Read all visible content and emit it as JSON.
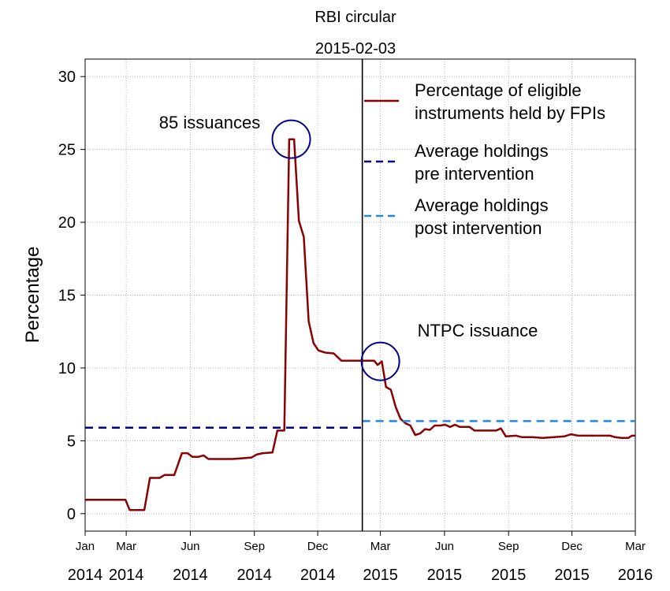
{
  "chart_data": {
    "type": "line",
    "title": "RBI circular",
    "subtitle": "2015-02-03",
    "ylabel": "Percentage",
    "xlabel": "",
    "ylim": [
      -1.2,
      31.2
    ],
    "yticks": [
      0,
      5,
      10,
      15,
      20,
      25,
      30
    ],
    "xlim": [
      "2014-01-01",
      "2016-03-01"
    ],
    "xticks": [
      {
        "date": "2014-01-01",
        "month": "Jan",
        "year": "2014"
      },
      {
        "date": "2014-03-01",
        "month": "Mar",
        "year": "2014"
      },
      {
        "date": "2014-06-01",
        "month": "Jun",
        "year": "2014"
      },
      {
        "date": "2014-09-01",
        "month": "Sep",
        "year": "2014"
      },
      {
        "date": "2014-12-01",
        "month": "Dec",
        "year": "2014"
      },
      {
        "date": "2015-03-01",
        "month": "Mar",
        "year": "2015"
      },
      {
        "date": "2015-06-01",
        "month": "Jun",
        "year": "2015"
      },
      {
        "date": "2015-09-01",
        "month": "Sep",
        "year": "2015"
      },
      {
        "date": "2015-12-01",
        "month": "Dec",
        "year": "2015"
      },
      {
        "date": "2016-03-01",
        "month": "Mar",
        "year": "2016"
      }
    ],
    "grid": true,
    "legend_position": "top-right",
    "intervention_date": "2015-02-03",
    "series": [
      {
        "name": "Percentage of eligible instruments held by FPIs",
        "color": "#8b0000",
        "style": "solid",
        "points": [
          [
            "2014-01-01",
            0.95
          ],
          [
            "2014-02-28",
            0.95
          ],
          [
            "2014-03-06",
            0.25
          ],
          [
            "2014-03-27",
            0.25
          ],
          [
            "2014-04-04",
            2.45
          ],
          [
            "2014-04-18",
            2.45
          ],
          [
            "2014-04-25",
            2.65
          ],
          [
            "2014-05-09",
            2.65
          ],
          [
            "2014-05-20",
            4.15
          ],
          [
            "2014-05-28",
            4.15
          ],
          [
            "2014-06-04",
            3.9
          ],
          [
            "2014-06-13",
            3.9
          ],
          [
            "2014-06-20",
            4.0
          ],
          [
            "2014-06-27",
            3.75
          ],
          [
            "2014-07-10",
            3.75
          ],
          [
            "2014-07-31",
            3.75
          ],
          [
            "2014-08-14",
            3.8
          ],
          [
            "2014-08-28",
            3.85
          ],
          [
            "2014-09-04",
            4.05
          ],
          [
            "2014-09-13",
            4.15
          ],
          [
            "2014-09-27",
            4.2
          ],
          [
            "2014-10-04",
            5.7
          ],
          [
            "2014-10-14",
            5.7
          ],
          [
            "2014-10-21",
            25.7
          ],
          [
            "2014-10-28",
            25.7
          ],
          [
            "2014-11-04",
            20.1
          ],
          [
            "2014-11-11",
            19.0
          ],
          [
            "2014-11-18",
            13.2
          ],
          [
            "2014-11-25",
            11.7
          ],
          [
            "2014-12-02",
            11.2
          ],
          [
            "2014-12-12",
            11.05
          ],
          [
            "2014-12-24",
            11.0
          ],
          [
            "2015-01-04",
            10.5
          ],
          [
            "2015-01-20",
            10.5
          ],
          [
            "2015-02-10",
            10.5
          ],
          [
            "2015-02-20",
            10.5
          ],
          [
            "2015-02-25",
            10.2
          ],
          [
            "2015-03-03",
            10.45
          ],
          [
            "2015-03-09",
            8.7
          ],
          [
            "2015-03-16",
            8.5
          ],
          [
            "2015-03-23",
            7.3
          ],
          [
            "2015-03-30",
            6.5
          ],
          [
            "2015-04-06",
            6.2
          ],
          [
            "2015-04-13",
            6.05
          ],
          [
            "2015-04-20",
            5.4
          ],
          [
            "2015-04-27",
            5.5
          ],
          [
            "2015-05-04",
            5.8
          ],
          [
            "2015-05-11",
            5.75
          ],
          [
            "2015-05-18",
            6.05
          ],
          [
            "2015-05-26",
            6.05
          ],
          [
            "2015-06-02",
            6.1
          ],
          [
            "2015-06-09",
            5.95
          ],
          [
            "2015-06-16",
            6.1
          ],
          [
            "2015-06-23",
            5.95
          ],
          [
            "2015-07-07",
            5.95
          ],
          [
            "2015-07-14",
            5.7
          ],
          [
            "2015-07-31",
            5.7
          ],
          [
            "2015-08-14",
            5.7
          ],
          [
            "2015-08-21",
            5.85
          ],
          [
            "2015-08-28",
            5.3
          ],
          [
            "2015-09-12",
            5.35
          ],
          [
            "2015-09-20",
            5.25
          ],
          [
            "2015-10-05",
            5.25
          ],
          [
            "2015-10-20",
            5.2
          ],
          [
            "2015-11-05",
            5.25
          ],
          [
            "2015-11-20",
            5.3
          ],
          [
            "2015-11-30",
            5.45
          ],
          [
            "2015-12-10",
            5.35
          ],
          [
            "2015-12-25",
            5.35
          ],
          [
            "2016-01-10",
            5.35
          ],
          [
            "2016-01-25",
            5.35
          ],
          [
            "2016-02-01",
            5.25
          ],
          [
            "2016-02-10",
            5.2
          ],
          [
            "2016-02-20",
            5.2
          ],
          [
            "2016-02-25",
            5.35
          ],
          [
            "2016-03-01",
            5.35
          ]
        ]
      },
      {
        "name": "Average holdings pre intervention",
        "color": "#000080",
        "style": "dashed",
        "x_range": [
          "2014-01-01",
          "2015-02-03"
        ],
        "value": 5.9
      },
      {
        "name": "Average holdings post intervention",
        "color": "#1e88e5",
        "style": "dashed",
        "x_range": [
          "2015-02-03",
          "2016-03-01"
        ],
        "value": 6.35
      }
    ],
    "legend": [
      {
        "line1": "Percentage of eligible",
        "line2": "instruments held by FPIs"
      },
      {
        "line1": "Average holdings",
        "line2": "pre intervention"
      },
      {
        "line1": "Average holdings",
        "line2": "post intervention"
      }
    ],
    "annotations": [
      {
        "text": "85 issuances",
        "circle_x": "2014-10-24",
        "circle_y": 25.7
      },
      {
        "text": "NTPC issuance",
        "circle_x": "2015-03-01",
        "circle_y": 10.45
      }
    ]
  }
}
